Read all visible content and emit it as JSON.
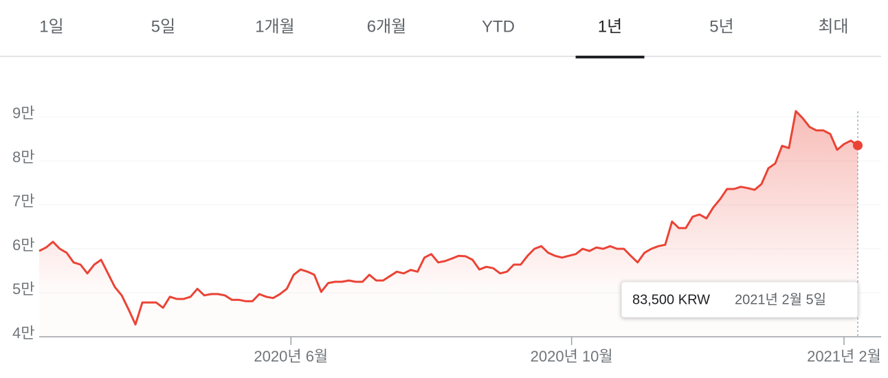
{
  "tabs": [
    "1일",
    "5일",
    "1개월",
    "6개월",
    "YTD",
    "1년",
    "5년",
    "최대"
  ],
  "selected_tab": 5,
  "chart_data": {
    "type": "line",
    "color": "#ea4335",
    "values": [
      59500,
      60300,
      61600,
      60000,
      59100,
      56900,
      56400,
      54400,
      56400,
      57500,
      54400,
      51300,
      49400,
      46200,
      42800,
      47800,
      47800,
      47800,
      46600,
      49100,
      48600,
      48600,
      49100,
      50900,
      49400,
      49700,
      49700,
      49400,
      48400,
      48400,
      48100,
      48100,
      49700,
      49100,
      48800,
      49700,
      50900,
      54100,
      55300,
      54800,
      54100,
      50200,
      52200,
      52500,
      52500,
      52800,
      52500,
      52500,
      54100,
      52800,
      52800,
      53800,
      54800,
      54400,
      55200,
      54800,
      58000,
      58800,
      56900,
      57200,
      57800,
      58400,
      58300,
      57500,
      55300,
      55900,
      55600,
      54400,
      54800,
      56400,
      56400,
      58400,
      60000,
      60600,
      59100,
      58400,
      58000,
      58400,
      58800,
      60000,
      59500,
      60300,
      60000,
      60600,
      60000,
      60000,
      58400,
      56900,
      59100,
      60000,
      60600,
      60900,
      66200,
      64700,
      64700,
      67300,
      67800,
      66900,
      69400,
      71300,
      73600,
      73600,
      74100,
      73800,
      73400,
      74700,
      78300,
      79400,
      83400,
      82900,
      91300,
      89700,
      87700,
      86900,
      86900,
      86100,
      82500,
      83800,
      84600,
      83500
    ],
    "xlim": [
      0,
      119
    ],
    "xticks": [
      {
        "value": 36.6,
        "label": "2020년 6월"
      },
      {
        "value": 77.4,
        "label": "2020년 10월"
      },
      {
        "value": 117,
        "label": "2021년 2월"
      }
    ],
    "ylim": [
      40000,
      100000
    ],
    "yticks": [
      {
        "value": 40000,
        "label": "4만"
      },
      {
        "value": 50000,
        "label": "5만"
      },
      {
        "value": 60000,
        "label": "6만"
      },
      {
        "value": 70000,
        "label": "7만"
      },
      {
        "value": 80000,
        "label": "8만"
      },
      {
        "value": 90000,
        "label": "9만"
      }
    ],
    "grid": true,
    "tooltip": {
      "label": "83,500 KRW",
      "date": "2021년 2월 5일"
    }
  }
}
